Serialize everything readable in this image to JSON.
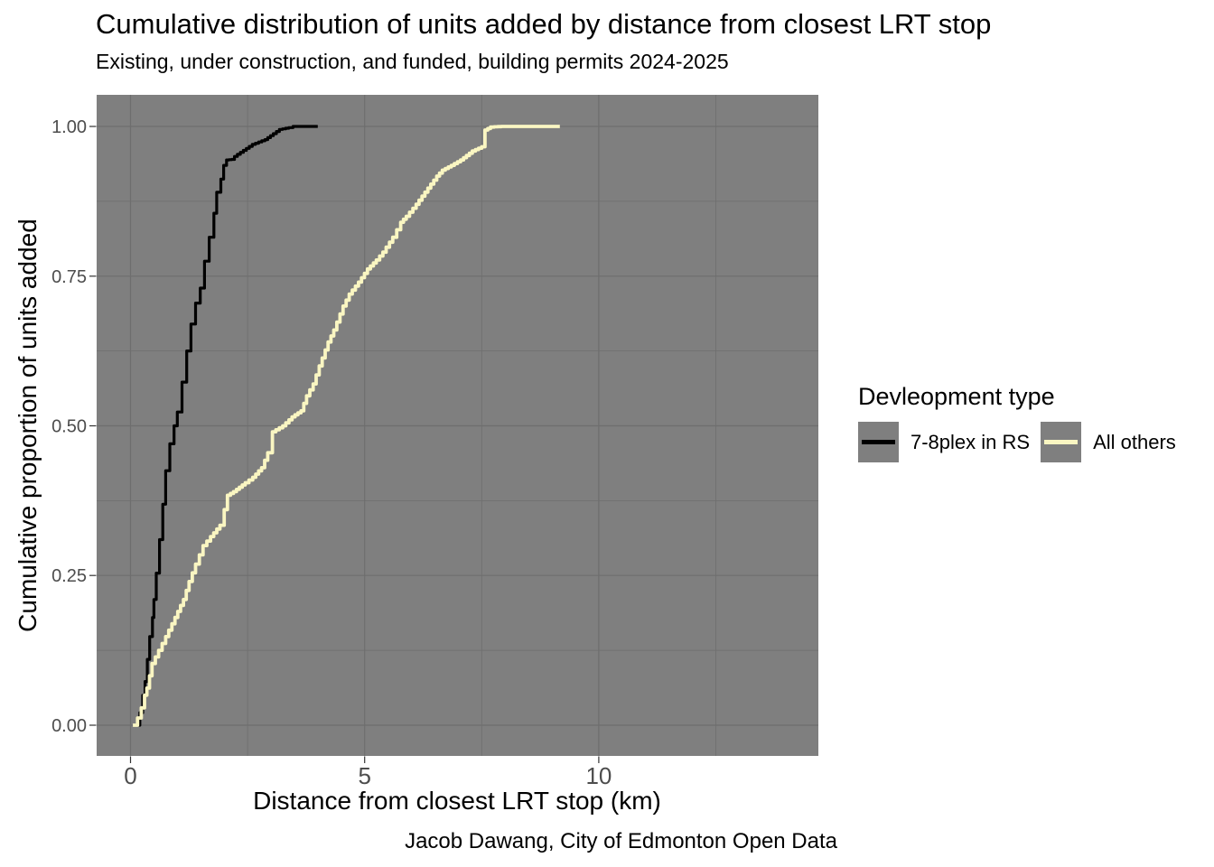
{
  "title": "Cumulative distribution of units added by distance from closest LRT stop",
  "subtitle": "Existing, under construction, and funded, building permits 2024-2025",
  "caption": "Jacob Dawang, City of Edmonton Open Data",
  "legend": {
    "title": "Devleopment type",
    "items": [
      {
        "label": "7-8plex in RS",
        "color": "#000000"
      },
      {
        "label": "All others",
        "color": "#FAF6C2"
      }
    ]
  },
  "colors": {
    "panel_bg": "#7F7F7F",
    "grid": "#6E6E6E",
    "tick_mark": "#333333",
    "axis_text": "#4D4D4D",
    "plot_bg": "#FFFFFF"
  },
  "chart_data": {
    "type": "line",
    "subtype": "ecdf-step",
    "title": "Cumulative distribution of units added by distance from closest LRT stop",
    "subtitle": "Existing, under construction, and funded, building permits 2024-2025",
    "xlabel": "Distance from closest LRT stop (km)",
    "ylabel": "Cumulative proportion of units added",
    "grid": "on",
    "legend_position": "right",
    "xlim": [
      -0.723,
      14.69
    ],
    "ylim": [
      -0.0513,
      1.0528
    ],
    "x_ticks": [
      0,
      5,
      10
    ],
    "x_tick_labels": [
      "0",
      "5",
      "10"
    ],
    "x_minor_ticks": [
      2.5,
      7.5,
      12.5
    ],
    "y_ticks": [
      0,
      0.25,
      0.5,
      0.75,
      1.0
    ],
    "y_tick_labels": [
      "0.00",
      "0.25",
      "0.50",
      "0.75",
      "1.00"
    ],
    "y_minor_ticks": [
      0.125,
      0.375,
      0.625,
      0.875
    ],
    "series": [
      {
        "name": "7-8plex in RS",
        "color": "#000000",
        "points": [
          [
            0.14,
            0.0
          ],
          [
            0.2,
            0.021
          ],
          [
            0.26,
            0.05
          ],
          [
            0.31,
            0.073
          ],
          [
            0.36,
            0.11
          ],
          [
            0.41,
            0.148
          ],
          [
            0.47,
            0.18
          ],
          [
            0.5,
            0.21
          ],
          [
            0.55,
            0.254
          ],
          [
            0.62,
            0.31
          ],
          [
            0.69,
            0.369
          ],
          [
            0.75,
            0.425
          ],
          [
            0.84,
            0.47
          ],
          [
            0.93,
            0.5
          ],
          [
            1.0,
            0.523
          ],
          [
            1.1,
            0.573
          ],
          [
            1.2,
            0.625
          ],
          [
            1.29,
            0.67
          ],
          [
            1.39,
            0.705
          ],
          [
            1.49,
            0.73
          ],
          [
            1.58,
            0.775
          ],
          [
            1.68,
            0.815
          ],
          [
            1.78,
            0.855
          ],
          [
            1.84,
            0.89
          ],
          [
            1.93,
            0.912
          ],
          [
            1.99,
            0.935
          ],
          [
            2.05,
            0.944
          ],
          [
            2.16,
            0.945
          ],
          [
            2.22,
            0.95
          ],
          [
            2.41,
            0.96
          ],
          [
            2.6,
            0.97
          ],
          [
            2.87,
            0.978
          ],
          [
            3.05,
            0.988
          ],
          [
            3.18,
            0.995
          ],
          [
            3.38,
            0.998
          ],
          [
            3.47,
            1.0
          ],
          [
            4.0,
            1.0
          ]
        ]
      },
      {
        "name": "All others",
        "color": "#FAF6C2",
        "points": [
          [
            0.05,
            0.0
          ],
          [
            0.15,
            0.012
          ],
          [
            0.23,
            0.029
          ],
          [
            0.3,
            0.05
          ],
          [
            0.35,
            0.062
          ],
          [
            0.46,
            0.103
          ],
          [
            0.6,
            0.125
          ],
          [
            0.75,
            0.148
          ],
          [
            0.95,
            0.18
          ],
          [
            1.13,
            0.21
          ],
          [
            1.25,
            0.24
          ],
          [
            1.39,
            0.269
          ],
          [
            1.55,
            0.3
          ],
          [
            1.71,
            0.315
          ],
          [
            1.91,
            0.334
          ],
          [
            2.0,
            0.36
          ],
          [
            2.07,
            0.384
          ],
          [
            2.2,
            0.39
          ],
          [
            2.45,
            0.405
          ],
          [
            2.61,
            0.414
          ],
          [
            2.8,
            0.43
          ],
          [
            2.93,
            0.455
          ],
          [
            3.03,
            0.49
          ],
          [
            3.25,
            0.5
          ],
          [
            3.45,
            0.515
          ],
          [
            3.64,
            0.525
          ],
          [
            3.76,
            0.55
          ],
          [
            3.9,
            0.57
          ],
          [
            4.03,
            0.6
          ],
          [
            4.22,
            0.64
          ],
          [
            4.34,
            0.66
          ],
          [
            4.54,
            0.7
          ],
          [
            4.67,
            0.72
          ],
          [
            4.87,
            0.74
          ],
          [
            5.06,
            0.762
          ],
          [
            5.25,
            0.777
          ],
          [
            5.39,
            0.79
          ],
          [
            5.6,
            0.815
          ],
          [
            5.77,
            0.84
          ],
          [
            5.89,
            0.85
          ],
          [
            6.1,
            0.87
          ],
          [
            6.35,
            0.897
          ],
          [
            6.54,
            0.917
          ],
          [
            6.66,
            0.927
          ],
          [
            6.85,
            0.935
          ],
          [
            7.05,
            0.944
          ],
          [
            7.3,
            0.959
          ],
          [
            7.5,
            0.966
          ],
          [
            7.57,
            0.994
          ],
          [
            7.69,
            0.999
          ],
          [
            7.92,
            1.0
          ],
          [
            9.17,
            1.0
          ]
        ]
      }
    ]
  }
}
